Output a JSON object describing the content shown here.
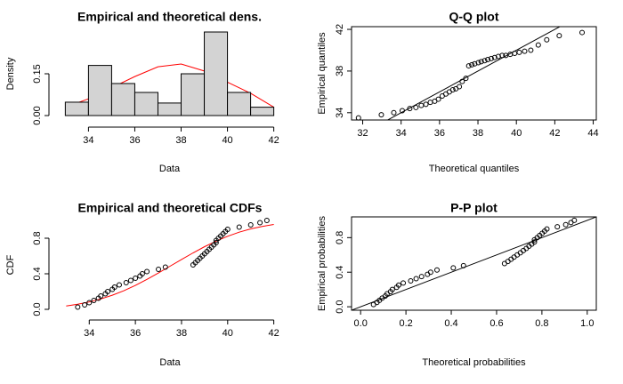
{
  "chart_data": [
    {
      "type": "histogram",
      "title": "Empirical and theoretical dens.",
      "xlabel": "Data",
      "ylabel": "Density",
      "bins": [
        33,
        34,
        35,
        36,
        37,
        38,
        39,
        40,
        41,
        42
      ],
      "values": [
        0.048,
        0.18,
        0.115,
        0.083,
        0.045,
        0.15,
        0.3,
        0.083,
        0.03
      ],
      "color": "#d3d3d3",
      "curve": {
        "x": [
          33,
          34,
          35,
          36,
          37,
          38,
          39,
          40,
          41,
          42
        ],
        "values": [
          0.03,
          0.06,
          0.1,
          0.14,
          0.175,
          0.185,
          0.16,
          0.12,
          0.08,
          0.03
        ],
        "color": "#ff0000"
      },
      "xlim": [
        32.64,
        42.36
      ],
      "ylim": [
        0,
        0.3
      ],
      "xticks": [
        34,
        36,
        38,
        40,
        42
      ],
      "yticks": [
        {
          "value": 0,
          "label": "0.00"
        },
        0.15
      ],
      "frame": false
    },
    {
      "type": "scatter",
      "title": "Q-Q plot",
      "xlabel": "Theoretical quantiles",
      "ylabel": "Empirical quantiles",
      "x": [
        31.78,
        32.97,
        33.62,
        34.06,
        34.45,
        34.77,
        35.05,
        35.29,
        35.52,
        35.75,
        35.94,
        36.14,
        36.33,
        36.51,
        36.69,
        36.85,
        37.03,
        37.18,
        37.37,
        37.52,
        37.68,
        37.83,
        38.02,
        38.17,
        38.35,
        38.51,
        38.69,
        38.87,
        39.06,
        39.26,
        39.45,
        39.68,
        39.91,
        40.15,
        40.43,
        40.75,
        41.14,
        41.58,
        42.23,
        43.42
      ],
      "values": [
        33.5,
        33.8,
        34.0,
        34.2,
        34.4,
        34.5,
        34.7,
        34.8,
        35.0,
        35.1,
        35.3,
        35.6,
        35.8,
        36.0,
        36.2,
        36.3,
        36.5,
        37.0,
        37.3,
        38.5,
        38.6,
        38.7,
        38.8,
        38.9,
        39.0,
        39.1,
        39.2,
        39.3,
        39.4,
        39.5,
        39.5,
        39.6,
        39.7,
        39.8,
        39.9,
        40.0,
        40.5,
        41.0,
        41.4,
        41.7
      ],
      "reference_line": true,
      "xlim": [
        31.42,
        44.16
      ],
      "ylim": [
        33.3,
        42.26
      ],
      "xticks": [
        32,
        34,
        36,
        38,
        40,
        42,
        44
      ],
      "yticks": [
        34,
        38,
        42
      ],
      "frame": true
    },
    {
      "type": "scatter",
      "title": "Empirical and theoretical CDFs",
      "xlabel": "Data",
      "ylabel": "CDF",
      "x": [
        33.5,
        33.8,
        34.0,
        34.2,
        34.4,
        34.5,
        34.7,
        34.8,
        35.0,
        35.1,
        35.3,
        35.6,
        35.8,
        36.0,
        36.2,
        36.3,
        36.5,
        37.0,
        37.3,
        38.5,
        38.6,
        38.7,
        38.8,
        38.9,
        39.0,
        39.1,
        39.2,
        39.3,
        39.4,
        39.5,
        39.5,
        39.6,
        39.7,
        39.8,
        39.9,
        40.0,
        40.5,
        41.0,
        41.4,
        41.7
      ],
      "values": [
        0.025,
        0.05,
        0.075,
        0.1,
        0.125,
        0.15,
        0.175,
        0.2,
        0.225,
        0.25,
        0.275,
        0.3,
        0.325,
        0.35,
        0.375,
        0.4,
        0.425,
        0.45,
        0.475,
        0.5,
        0.525,
        0.55,
        0.575,
        0.6,
        0.625,
        0.65,
        0.675,
        0.7,
        0.725,
        0.75,
        0.775,
        0.8,
        0.825,
        0.85,
        0.875,
        0.9,
        0.925,
        0.95,
        0.975,
        1.0
      ],
      "curve": {
        "x": [
          33,
          33.5,
          34,
          34.5,
          35,
          35.5,
          36,
          36.5,
          37,
          37.5,
          38,
          38.5,
          39,
          39.5,
          40,
          40.5,
          41,
          41.5,
          42
        ],
        "values": [
          0.038,
          0.057,
          0.083,
          0.117,
          0.159,
          0.209,
          0.269,
          0.337,
          0.409,
          0.485,
          0.561,
          0.635,
          0.705,
          0.767,
          0.822,
          0.868,
          0.905,
          0.933,
          0.955
        ],
        "color": "#ff0000"
      },
      "xlim": [
        32.6,
        42.4
      ],
      "ylim": [
        -0.04,
        1.04
      ],
      "xticks": [
        34,
        36,
        38,
        40,
        42
      ],
      "yticks": [
        {
          "value": 0,
          "label": "0.0"
        },
        0.4,
        0.8
      ],
      "frame": false
    },
    {
      "type": "scatter",
      "title": "P-P plot",
      "xlabel": "Theoretical probabilities",
      "ylabel": "Empirical probabilities",
      "x": [
        0.057,
        0.072,
        0.083,
        0.095,
        0.109,
        0.117,
        0.132,
        0.14,
        0.159,
        0.168,
        0.188,
        0.221,
        0.245,
        0.269,
        0.295,
        0.309,
        0.337,
        0.409,
        0.454,
        0.635,
        0.65,
        0.664,
        0.677,
        0.691,
        0.705,
        0.718,
        0.731,
        0.743,
        0.755,
        0.767,
        0.767,
        0.779,
        0.79,
        0.801,
        0.812,
        0.822,
        0.868,
        0.905,
        0.928,
        0.943
      ],
      "values": [
        0.025,
        0.05,
        0.075,
        0.1,
        0.125,
        0.15,
        0.175,
        0.2,
        0.225,
        0.25,
        0.275,
        0.3,
        0.325,
        0.35,
        0.375,
        0.4,
        0.425,
        0.45,
        0.475,
        0.5,
        0.525,
        0.55,
        0.575,
        0.6,
        0.625,
        0.65,
        0.675,
        0.7,
        0.725,
        0.75,
        0.775,
        0.8,
        0.825,
        0.85,
        0.875,
        0.9,
        0.925,
        0.95,
        0.975,
        1.0
      ],
      "reference_line": true,
      "xlim": [
        -0.04,
        1.04
      ],
      "ylim": [
        -0.04,
        1.04
      ],
      "xticks": [
        {
          "value": 0,
          "label": "0.0"
        },
        0.2,
        0.4,
        0.6,
        0.8,
        {
          "value": 1,
          "label": "1.0"
        }
      ],
      "yticks": [
        {
          "value": 0,
          "label": "0.0"
        },
        0.4,
        0.8
      ],
      "frame": true
    }
  ]
}
